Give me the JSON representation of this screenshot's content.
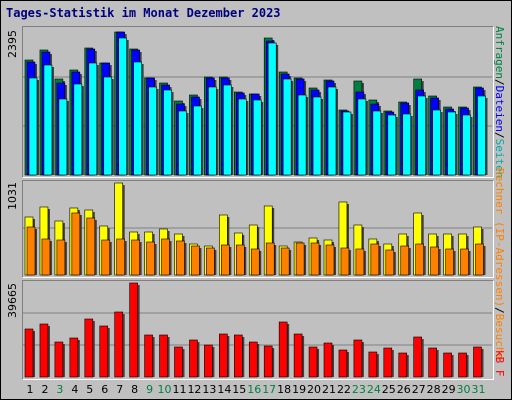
{
  "title": "Tages-Statistik im Monat Dezember 2023",
  "colors": {
    "anfragen": "#008040",
    "dateien": "#0000ff",
    "seiten": "#00ffff",
    "rechner": "#ffff00",
    "besuche": "#ff8000",
    "kb": "#ff0000",
    "weekday_label": "#000000",
    "weekend_label": "#008040"
  },
  "chart_data": [
    {
      "type": "bar",
      "title": "Tages-Statistik im Monat Dezember 2023",
      "ymax_label": "2395",
      "ylim": [
        0,
        2395
      ],
      "legend_side": "right",
      "legend": [
        {
          "text": "Anfragen",
          "color": "#008040"
        },
        {
          "text": "/",
          "color": "#000000"
        },
        {
          "text": "Dateien",
          "color": "#0000ff"
        },
        {
          "text": "/",
          "color": "#000000"
        },
        {
          "text": "Seiten",
          "color": "#00ffff"
        }
      ],
      "categories": [
        "1",
        "2",
        "3",
        "4",
        "5",
        "6",
        "7",
        "8",
        "9",
        "10",
        "11",
        "12",
        "13",
        "14",
        "15",
        "16",
        "17",
        "18",
        "19",
        "20",
        "21",
        "22",
        "23",
        "24",
        "25",
        "26",
        "27",
        "28",
        "29",
        "30",
        "31"
      ],
      "series": [
        {
          "name": "Anfragen",
          "values": [
            1880,
            2055,
            1575,
            1715,
            2085,
            1845,
            2350,
            2060,
            1595,
            1505,
            1215,
            1315,
            1610,
            1605,
            1365,
            1335,
            2255,
            1685,
            1595,
            1430,
            1555,
            1060,
            1545,
            1235,
            1045,
            1195,
            1580,
            1290,
            1120,
            1115,
            1450
          ]
        },
        {
          "name": "Dateien",
          "values": [
            1855,
            2010,
            1505,
            1685,
            2075,
            1835,
            2345,
            2050,
            1585,
            1480,
            1160,
            1285,
            1585,
            1585,
            1345,
            1330,
            2205,
            1665,
            1570,
            1395,
            1535,
            1050,
            1365,
            1165,
            1030,
            1175,
            1390,
            1265,
            1085,
            1095,
            1425
          ]
        },
        {
          "name": "Seiten",
          "values": [
            1590,
            1800,
            1250,
            1490,
            1830,
            1600,
            2250,
            1855,
            1445,
            1390,
            1055,
            1130,
            1445,
            1470,
            1245,
            1230,
            2165,
            1580,
            1315,
            1280,
            1445,
            1035,
            1240,
            1050,
            985,
            1000,
            1290,
            1060,
            1030,
            980,
            1300
          ]
        }
      ]
    },
    {
      "type": "bar",
      "ymax_label": "1031",
      "ylim": [
        0,
        1031
      ],
      "legend_side": "right",
      "legend": [
        {
          "text": "Rechner (IP-Adressen)",
          "color": "#ffff00"
        },
        {
          "text": "/",
          "color": "#000000"
        },
        {
          "text": "Besuche",
          "color": "#ff8000"
        }
      ],
      "categories": [
        "1",
        "2",
        "3",
        "4",
        "5",
        "6",
        "7",
        "8",
        "9",
        "10",
        "11",
        "12",
        "13",
        "14",
        "15",
        "16",
        "17",
        "18",
        "19",
        "20",
        "21",
        "22",
        "23",
        "24",
        "25",
        "26",
        "27",
        "28",
        "29",
        "30",
        "31"
      ],
      "series": [
        {
          "name": "Rechner (IP-Adressen)",
          "values": [
            650,
            765,
            610,
            755,
            725,
            545,
            1031,
            480,
            480,
            515,
            465,
            345,
            325,
            670,
            475,
            555,
            770,
            330,
            370,
            415,
            395,
            820,
            555,
            405,
            350,
            465,
            700,
            460,
            465,
            460,
            540
          ]
        },
        {
          "name": "Besuche",
          "values": [
            535,
            400,
            395,
            690,
            635,
            390,
            400,
            390,
            365,
            400,
            385,
            320,
            300,
            335,
            335,
            295,
            355,
            305,
            355,
            360,
            340,
            305,
            290,
            345,
            285,
            325,
            345,
            310,
            295,
            295,
            350
          ]
        }
      ]
    },
    {
      "type": "bar",
      "ymax_label": "39665",
      "ylim": [
        0,
        39665
      ],
      "legend_side": "right",
      "legend": [
        {
          "text": "kB F",
          "color": "#ff0000"
        }
      ],
      "categories": [
        "1",
        "2",
        "3",
        "4",
        "5",
        "6",
        "7",
        "8",
        "9",
        "10",
        "11",
        "12",
        "13",
        "14",
        "15",
        "16",
        "17",
        "18",
        "19",
        "20",
        "21",
        "22",
        "23",
        "24",
        "25",
        "26",
        "27",
        "28",
        "29",
        "30",
        "31"
      ],
      "series": [
        {
          "name": "kB F",
          "values": [
            20100,
            22500,
            14900,
            16400,
            24300,
            21600,
            27600,
            39665,
            17800,
            17600,
            12800,
            15600,
            13400,
            18300,
            17600,
            14700,
            13000,
            23300,
            18200,
            12600,
            14500,
            11300,
            15700,
            10600,
            12200,
            10200,
            16900,
            12400,
            10300,
            10200,
            12600
          ]
        }
      ]
    }
  ],
  "x_labels": [
    {
      "text": "1",
      "weekend": false
    },
    {
      "text": "2",
      "weekend": false
    },
    {
      "text": "3",
      "weekend": true
    },
    {
      "text": "4",
      "weekend": false
    },
    {
      "text": "5",
      "weekend": false
    },
    {
      "text": "6",
      "weekend": false
    },
    {
      "text": "7",
      "weekend": false
    },
    {
      "text": "8",
      "weekend": false
    },
    {
      "text": "9",
      "weekend": true
    },
    {
      "text": "10",
      "weekend": true
    },
    {
      "text": "11",
      "weekend": false
    },
    {
      "text": "12",
      "weekend": false
    },
    {
      "text": "13",
      "weekend": false
    },
    {
      "text": "14",
      "weekend": false
    },
    {
      "text": "15",
      "weekend": false
    },
    {
      "text": "16",
      "weekend": true
    },
    {
      "text": "17",
      "weekend": true
    },
    {
      "text": "18",
      "weekend": false
    },
    {
      "text": "19",
      "weekend": false
    },
    {
      "text": "20",
      "weekend": false
    },
    {
      "text": "21",
      "weekend": false
    },
    {
      "text": "22",
      "weekend": false
    },
    {
      "text": "23",
      "weekend": true
    },
    {
      "text": "24",
      "weekend": true
    },
    {
      "text": "25",
      "weekend": false
    },
    {
      "text": "26",
      "weekend": false
    },
    {
      "text": "27",
      "weekend": false
    },
    {
      "text": "28",
      "weekend": false
    },
    {
      "text": "29",
      "weekend": false
    },
    {
      "text": "30",
      "weekend": true
    },
    {
      "text": "31",
      "weekend": true
    }
  ]
}
